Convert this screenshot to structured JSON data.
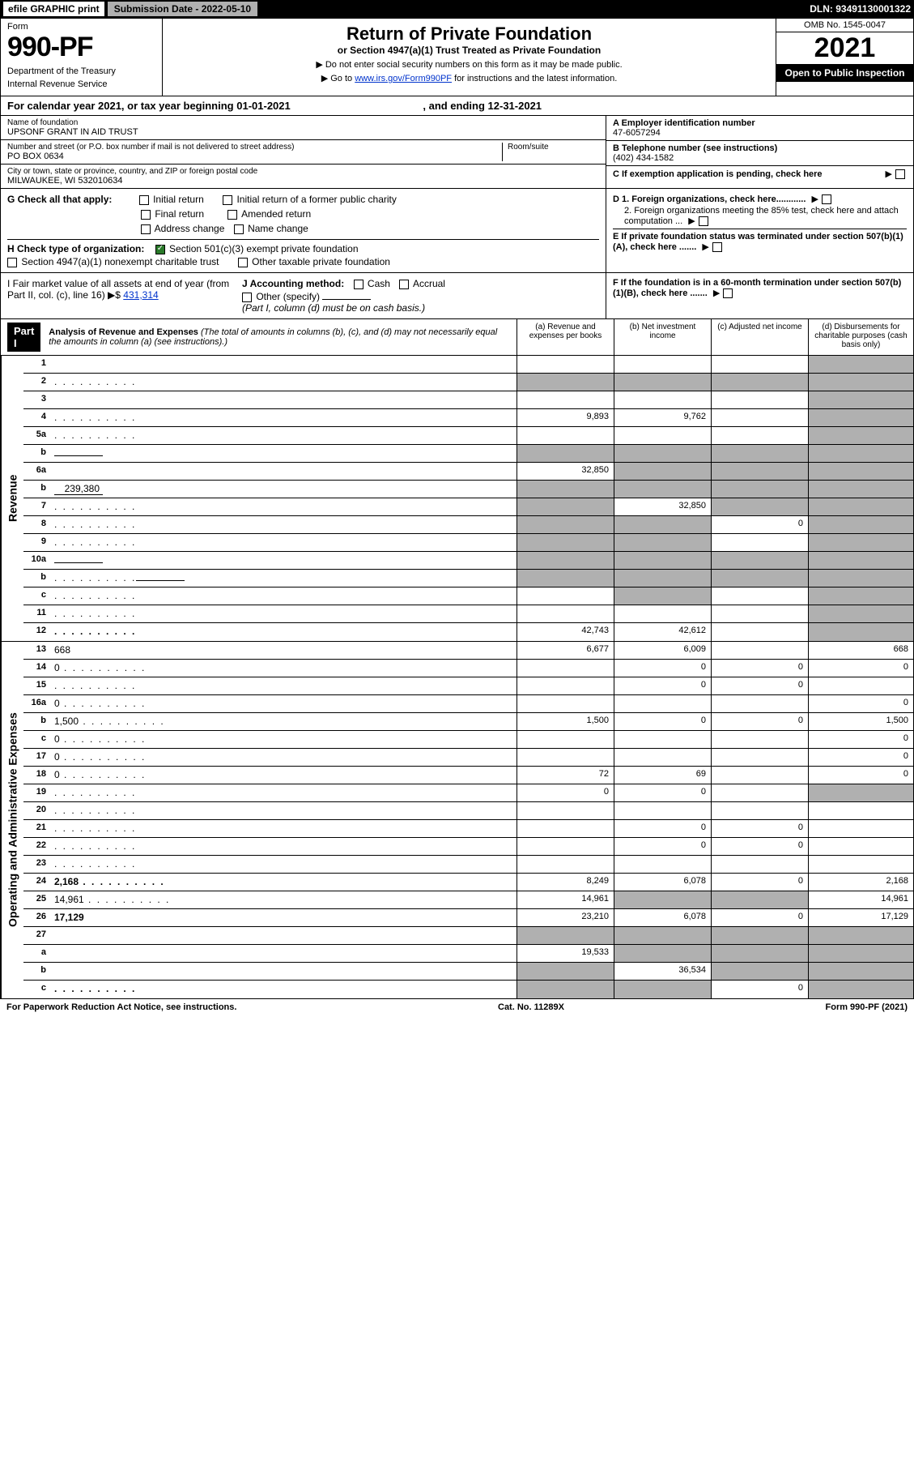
{
  "topbar": {
    "efile": "efile GRAPHIC print",
    "submission": "Submission Date - 2022-05-10",
    "dln": "DLN: 93491130001322"
  },
  "header": {
    "form_label": "Form",
    "form_number": "990-PF",
    "dept": "Department of the Treasury",
    "irs": "Internal Revenue Service",
    "title": "Return of Private Foundation",
    "subtitle": "or Section 4947(a)(1) Trust Treated as Private Foundation",
    "instr1": "▶ Do not enter social security numbers on this form as it may be made public.",
    "instr2_pre": "▶ Go to ",
    "instr2_link": "www.irs.gov/Form990PF",
    "instr2_post": " for instructions and the latest information.",
    "omb": "OMB No. 1545-0047",
    "year": "2021",
    "open": "Open to Public Inspection"
  },
  "cal_year": {
    "text_pre": "For calendar year 2021, or tax year beginning ",
    "begin": "01-01-2021",
    "text_mid": " , and ending ",
    "end": "12-31-2021"
  },
  "info": {
    "name_lbl": "Name of foundation",
    "name": "UPSONF GRANT IN AID TRUST",
    "addr_lbl": "Number and street (or P.O. box number if mail is not delivered to street address)",
    "addr": "PO BOX 0634",
    "room_lbl": "Room/suite",
    "city_lbl": "City or town, state or province, country, and ZIP or foreign postal code",
    "city": "MILWAUKEE, WI  532010634",
    "a_lbl": "A Employer identification number",
    "a_val": "47-6057294",
    "b_lbl": "B Telephone number (see instructions)",
    "b_val": "(402) 434-1582",
    "c_lbl": "C If exemption application is pending, check here"
  },
  "g": {
    "label": "G Check all that apply:",
    "opts": [
      "Initial return",
      "Initial return of a former public charity",
      "Final return",
      "Amended return",
      "Address change",
      "Name change"
    ]
  },
  "h": {
    "label": "H Check type of organization:",
    "opt1": "Section 501(c)(3) exempt private foundation",
    "opt2": "Section 4947(a)(1) nonexempt charitable trust",
    "opt3": "Other taxable private foundation"
  },
  "i": {
    "label": "I Fair market value of all assets at end of year (from Part II, col. (c), line 16) ▶$",
    "val": "431,314"
  },
  "j": {
    "label": "J Accounting method:",
    "cash": "Cash",
    "accrual": "Accrual",
    "other": "Other (specify)",
    "note": "(Part I, column (d) must be on cash basis.)"
  },
  "d": {
    "d1": "D 1. Foreign organizations, check here............",
    "d2": "2. Foreign organizations meeting the 85% test, check here and attach computation ...",
    "e": "E  If private foundation status was terminated under section 507(b)(1)(A), check here .......",
    "f": "F  If the foundation is in a 60-month termination under section 507(b)(1)(B), check here ......."
  },
  "part1": {
    "label": "Part I",
    "title": "Analysis of Revenue and Expenses",
    "note": "(The total of amounts in columns (b), (c), and (d) may not necessarily equal the amounts in column (a) (see instructions).)",
    "col_a": "(a)  Revenue and expenses per books",
    "col_b": "(b)  Net investment income",
    "col_c": "(c)  Adjusted net income",
    "col_d": "(d)  Disbursements for charitable purposes (cash basis only)"
  },
  "side_labels": {
    "revenue": "Revenue",
    "expenses": "Operating and Administrative Expenses"
  },
  "rows": [
    {
      "n": "1",
      "d": "",
      "a": "",
      "b": "",
      "c": "",
      "shade_d": true
    },
    {
      "n": "2",
      "d": "",
      "dots": true,
      "a": "",
      "b": "",
      "c": "",
      "shade_all": true
    },
    {
      "n": "3",
      "d": "",
      "a": "",
      "b": "",
      "c": "",
      "shade_d": true
    },
    {
      "n": "4",
      "d": "",
      "dots": true,
      "a": "9,893",
      "b": "9,762",
      "c": "",
      "shade_d": true
    },
    {
      "n": "5a",
      "d": "",
      "dots": true,
      "a": "",
      "b": "",
      "c": "",
      "shade_d": true
    },
    {
      "n": "b",
      "d": "",
      "inline": "",
      "a": "",
      "b": "",
      "c": "",
      "shade_all": true
    },
    {
      "n": "6a",
      "d": "",
      "a": "32,850",
      "b": "",
      "c": "",
      "shade_bcd": true
    },
    {
      "n": "b",
      "d": "",
      "inline": "239,380",
      "a": "",
      "b": "",
      "c": "",
      "shade_all": true
    },
    {
      "n": "7",
      "d": "",
      "dots": true,
      "a": "",
      "b": "32,850",
      "c": "",
      "shade_a": true,
      "shade_cd": true
    },
    {
      "n": "8",
      "d": "",
      "dots": true,
      "a": "",
      "b": "",
      "c": "0",
      "shade_ab": true,
      "shade_d": true
    },
    {
      "n": "9",
      "d": "",
      "dots": true,
      "a": "",
      "b": "",
      "c": "",
      "shade_ab": true,
      "shade_d": true
    },
    {
      "n": "10a",
      "d": "",
      "inline": "",
      "a": "",
      "b": "",
      "c": "",
      "shade_all": true
    },
    {
      "n": "b",
      "d": "",
      "dots": true,
      "inline": "",
      "a": "",
      "b": "",
      "c": "",
      "shade_all": true
    },
    {
      "n": "c",
      "d": "",
      "dots": true,
      "a": "",
      "b": "",
      "c": "",
      "shade_b": true,
      "shade_d": true
    },
    {
      "n": "11",
      "d": "",
      "dots": true,
      "a": "",
      "b": "",
      "c": "",
      "shade_d": true
    },
    {
      "n": "12",
      "d": "",
      "dots": true,
      "bold": true,
      "a": "42,743",
      "b": "42,612",
      "c": "",
      "shade_d": true
    }
  ],
  "exp_rows": [
    {
      "n": "13",
      "d": "668",
      "a": "6,677",
      "b": "6,009",
      "c": ""
    },
    {
      "n": "14",
      "d": "0",
      "dots": true,
      "a": "",
      "b": "0",
      "c": "0"
    },
    {
      "n": "15",
      "d": "",
      "dots": true,
      "a": "",
      "b": "0",
      "c": "0"
    },
    {
      "n": "16a",
      "d": "0",
      "dots": true,
      "a": "",
      "b": "",
      "c": ""
    },
    {
      "n": "b",
      "d": "1,500",
      "dots": true,
      "a": "1,500",
      "b": "0",
      "c": "0"
    },
    {
      "n": "c",
      "d": "0",
      "dots": true,
      "a": "",
      "b": "",
      "c": ""
    },
    {
      "n": "17",
      "d": "0",
      "dots": true,
      "a": "",
      "b": "",
      "c": ""
    },
    {
      "n": "18",
      "d": "0",
      "dots": true,
      "a": "72",
      "b": "69",
      "c": ""
    },
    {
      "n": "19",
      "d": "",
      "dots": true,
      "a": "0",
      "b": "0",
      "c": "",
      "shade_d": true
    },
    {
      "n": "20",
      "d": "",
      "dots": true,
      "a": "",
      "b": "",
      "c": ""
    },
    {
      "n": "21",
      "d": "",
      "dots": true,
      "a": "",
      "b": "0",
      "c": "0"
    },
    {
      "n": "22",
      "d": "",
      "dots": true,
      "a": "",
      "b": "0",
      "c": "0"
    },
    {
      "n": "23",
      "d": "",
      "dots": true,
      "a": "",
      "b": "",
      "c": ""
    },
    {
      "n": "24",
      "d": "2,168",
      "dots": true,
      "bold": true,
      "a": "8,249",
      "b": "6,078",
      "c": "0"
    },
    {
      "n": "25",
      "d": "14,961",
      "dots": true,
      "a": "14,961",
      "b": "",
      "c": "",
      "shade_bc": true
    },
    {
      "n": "26",
      "d": "17,129",
      "bold": true,
      "a": "23,210",
      "b": "6,078",
      "c": "0"
    },
    {
      "n": "27",
      "d": "",
      "a": "",
      "b": "",
      "c": "",
      "shade_all": true
    },
    {
      "n": "a",
      "d": "",
      "bold": true,
      "a": "19,533",
      "b": "",
      "c": "",
      "shade_bcd": true
    },
    {
      "n": "b",
      "d": "",
      "bold": true,
      "a": "",
      "b": "36,534",
      "c": "",
      "shade_a": true,
      "shade_cd": true
    },
    {
      "n": "c",
      "d": "",
      "dots": true,
      "bold": true,
      "a": "",
      "b": "",
      "c": "0",
      "shade_ab": true,
      "shade_d": true
    }
  ],
  "footer": {
    "left": "For Paperwork Reduction Act Notice, see instructions.",
    "mid": "Cat. No. 11289X",
    "right": "Form 990-PF (2021)"
  }
}
